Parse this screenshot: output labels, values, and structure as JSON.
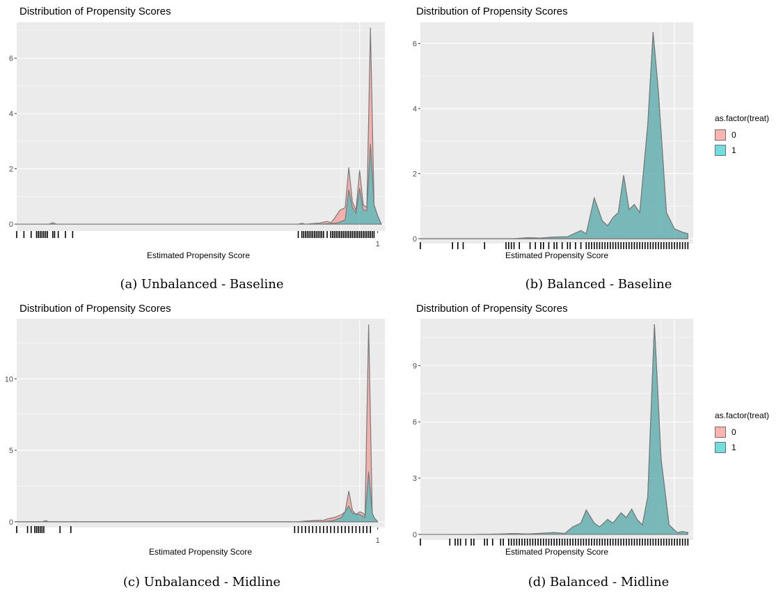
{
  "colors": {
    "group0": "#F8766D",
    "group1": "#00BFC4",
    "panel_bg": "#EBEBEB",
    "grid": "#FFFFFF",
    "outline": "#7A7A7A"
  },
  "legend": {
    "title": "as.factor(treat)",
    "items": [
      "0",
      "1"
    ]
  },
  "panels": [
    {
      "title": "Distribution of Propensity Scores",
      "xlabel": "Estimated Propensity Score",
      "caption": "(a) Unbalanced - Baseline",
      "xtick_labels": [
        "1"
      ],
      "yticks": [
        0,
        2,
        4,
        6
      ],
      "show_legend": false
    },
    {
      "title": "Distribution of Propensity Scores",
      "xlabel": "Estimated Propensity Score",
      "caption": "(b) Balanced - Baseline",
      "xtick_labels": [],
      "yticks": [
        0,
        2,
        4,
        6
      ],
      "show_legend": true
    },
    {
      "title": "Distribution of Propensity Scores",
      "xlabel": "Estimated Propensity Score",
      "caption": "(c) Unbalanced - Midline",
      "xtick_labels": [
        "1"
      ],
      "yticks": [
        0,
        5,
        10
      ],
      "show_legend": false
    },
    {
      "title": "Distribution of Propensity Scores",
      "xlabel": "Estimated Propensity Score",
      "caption": "(d) Balanced - Midline",
      "xtick_labels": [],
      "yticks": [
        0,
        3,
        6,
        9
      ],
      "show_legend": true
    }
  ],
  "chart_data": [
    {
      "type": "area",
      "title": "Distribution of Propensity Scores",
      "xlabel": "Estimated Propensity Score",
      "ylabel": "",
      "xlim": [
        0.0,
        1.02
      ],
      "ylim": [
        -0.25,
        7.3
      ],
      "xticks": [
        1
      ],
      "yticks": [
        0,
        2,
        4,
        6
      ],
      "series": [
        {
          "name": "0",
          "fill": "#F8766D",
          "points": [
            [
              0.0,
              0
            ],
            [
              0.09,
              0
            ],
            [
              0.1,
              0.05
            ],
            [
              0.11,
              0
            ],
            [
              0.78,
              0
            ],
            [
              0.79,
              0.03
            ],
            [
              0.8,
              0
            ],
            [
              0.84,
              0.04
            ],
            [
              0.86,
              0.1
            ],
            [
              0.87,
              0.05
            ],
            [
              0.88,
              0.2
            ],
            [
              0.895,
              0.5
            ],
            [
              0.91,
              0.6
            ],
            [
              0.92,
              2.05
            ],
            [
              0.93,
              0.8
            ],
            [
              0.94,
              0.5
            ],
            [
              0.95,
              1.95
            ],
            [
              0.96,
              0.7
            ],
            [
              0.97,
              0.6
            ],
            [
              0.98,
              7.1
            ],
            [
              0.99,
              0.7
            ],
            [
              1.0,
              0.3
            ],
            [
              1.01,
              0
            ]
          ]
        },
        {
          "name": "1",
          "fill": "#00BFC4",
          "points": [
            [
              0.0,
              0
            ],
            [
              0.84,
              0
            ],
            [
              0.87,
              0.02
            ],
            [
              0.89,
              0.05
            ],
            [
              0.91,
              0.15
            ],
            [
              0.92,
              1.25
            ],
            [
              0.93,
              0.6
            ],
            [
              0.94,
              0.4
            ],
            [
              0.95,
              1.3
            ],
            [
              0.96,
              0.5
            ],
            [
              0.97,
              0.5
            ],
            [
              0.98,
              2.9
            ],
            [
              0.99,
              0.7
            ],
            [
              1.0,
              0.3
            ],
            [
              1.01,
              0
            ]
          ]
        }
      ],
      "rug": [
        0.0,
        0.02,
        0.04,
        0.055,
        0.06,
        0.065,
        0.07,
        0.075,
        0.08,
        0.085,
        0.1,
        0.105,
        0.115,
        0.135,
        0.155,
        0.78,
        0.79,
        0.795,
        0.8,
        0.805,
        0.81,
        0.815,
        0.82,
        0.825,
        0.83,
        0.835,
        0.84,
        0.845,
        0.85,
        0.86,
        0.87,
        0.875,
        0.88,
        0.885,
        0.89,
        0.895,
        0.9,
        0.905,
        0.91,
        0.915,
        0.92,
        0.925,
        0.93,
        0.935,
        0.94,
        0.945,
        0.95,
        0.955,
        0.96,
        0.965,
        0.97,
        0.975,
        0.98,
        0.985,
        0.99
      ]
    },
    {
      "type": "area",
      "title": "Distribution of Propensity Scores",
      "xlabel": "Estimated Propensity Score",
      "ylabel": "",
      "xlim": [
        0.0,
        1.02
      ],
      "ylim": [
        -0.15,
        6.65
      ],
      "xticks": [],
      "yticks": [
        0,
        2,
        4,
        6
      ],
      "series": [
        {
          "name": "0",
          "fill": "#F8766D",
          "points": [
            [
              0.0,
              0
            ],
            [
              0.35,
              0
            ],
            [
              0.4,
              0.03
            ],
            [
              0.45,
              0.02
            ],
            [
              0.5,
              0.05
            ],
            [
              0.55,
              0.06
            ],
            [
              0.6,
              0.25
            ],
            [
              0.62,
              0.15
            ],
            [
              0.65,
              1.25
            ],
            [
              0.68,
              0.55
            ],
            [
              0.7,
              0.4
            ],
            [
              0.72,
              0.65
            ],
            [
              0.74,
              0.8
            ],
            [
              0.76,
              1.95
            ],
            [
              0.78,
              0.9
            ],
            [
              0.8,
              1.05
            ],
            [
              0.82,
              0.8
            ],
            [
              0.85,
              3.5
            ],
            [
              0.87,
              6.35
            ],
            [
              0.89,
              4.5
            ],
            [
              0.92,
              0.8
            ],
            [
              0.95,
              0.3
            ],
            [
              0.98,
              0.2
            ],
            [
              1.0,
              0.15
            ]
          ]
        },
        {
          "name": "1",
          "fill": "#00BFC4",
          "points": [
            [
              0.0,
              0
            ],
            [
              0.35,
              0
            ],
            [
              0.4,
              0.03
            ],
            [
              0.45,
              0.02
            ],
            [
              0.5,
              0.05
            ],
            [
              0.55,
              0.06
            ],
            [
              0.6,
              0.25
            ],
            [
              0.62,
              0.15
            ],
            [
              0.65,
              1.25
            ],
            [
              0.68,
              0.55
            ],
            [
              0.7,
              0.4
            ],
            [
              0.72,
              0.65
            ],
            [
              0.74,
              0.8
            ],
            [
              0.76,
              1.95
            ],
            [
              0.78,
              0.9
            ],
            [
              0.8,
              1.05
            ],
            [
              0.82,
              0.8
            ],
            [
              0.85,
              3.5
            ],
            [
              0.87,
              6.35
            ],
            [
              0.89,
              4.5
            ],
            [
              0.92,
              0.8
            ],
            [
              0.95,
              0.3
            ],
            [
              0.98,
              0.2
            ],
            [
              1.0,
              0.15
            ]
          ]
        }
      ],
      "rug": [
        0.0,
        0.12,
        0.14,
        0.16,
        0.24,
        0.32,
        0.33,
        0.34,
        0.35,
        0.37,
        0.41,
        0.43,
        0.45,
        0.46,
        0.48,
        0.5,
        0.51,
        0.53,
        0.55,
        0.56,
        0.58,
        0.6,
        0.62,
        0.63,
        0.64,
        0.65,
        0.66,
        0.67,
        0.68,
        0.69,
        0.7,
        0.71,
        0.72,
        0.73,
        0.74,
        0.75,
        0.76,
        0.77,
        0.78,
        0.79,
        0.8,
        0.81,
        0.82,
        0.83,
        0.84,
        0.85,
        0.86,
        0.87,
        0.88,
        0.89,
        0.9,
        0.91,
        0.92,
        0.93,
        0.94,
        0.95,
        0.96,
        0.97,
        0.98,
        0.99,
        1.0
      ]
    },
    {
      "type": "area",
      "title": "Distribution of Propensity Scores",
      "xlabel": "Estimated Propensity Score",
      "ylabel": "",
      "xlim": [
        0.0,
        1.02
      ],
      "ylim": [
        -0.4,
        14.2
      ],
      "xticks": [
        1
      ],
      "yticks": [
        0,
        5,
        10
      ],
      "series": [
        {
          "name": "0",
          "fill": "#F8766D",
          "points": [
            [
              0.0,
              0
            ],
            [
              0.07,
              0
            ],
            [
              0.08,
              0.08
            ],
            [
              0.09,
              0
            ],
            [
              0.78,
              0
            ],
            [
              0.8,
              0.05
            ],
            [
              0.83,
              0.1
            ],
            [
              0.85,
              0.1
            ],
            [
              0.86,
              0.2
            ],
            [
              0.88,
              0.3
            ],
            [
              0.9,
              0.5
            ],
            [
              0.91,
              0.7
            ],
            [
              0.92,
              2.15
            ],
            [
              0.93,
              0.8
            ],
            [
              0.94,
              0.5
            ],
            [
              0.95,
              0.7
            ],
            [
              0.96,
              0.6
            ],
            [
              0.965,
              0.4
            ],
            [
              0.975,
              13.8
            ],
            [
              0.985,
              0.6
            ],
            [
              0.99,
              0.3
            ],
            [
              1.0,
              0
            ]
          ]
        },
        {
          "name": "1",
          "fill": "#00BFC4",
          "points": [
            [
              0.0,
              0
            ],
            [
              0.85,
              0
            ],
            [
              0.88,
              0.1
            ],
            [
              0.9,
              0.3
            ],
            [
              0.92,
              1.1
            ],
            [
              0.93,
              0.6
            ],
            [
              0.95,
              0.5
            ],
            [
              0.965,
              0.3
            ],
            [
              0.975,
              3.5
            ],
            [
              0.985,
              0.6
            ],
            [
              0.99,
              0.3
            ],
            [
              1.0,
              0
            ]
          ]
        }
      ],
      "rug": [
        0.0,
        0.03,
        0.04,
        0.05,
        0.055,
        0.06,
        0.065,
        0.07,
        0.075,
        0.12,
        0.15,
        0.77,
        0.78,
        0.79,
        0.8,
        0.81,
        0.82,
        0.83,
        0.84,
        0.85,
        0.86,
        0.87,
        0.88,
        0.89,
        0.9,
        0.91,
        0.92,
        0.93,
        0.94,
        0.95,
        0.96,
        0.97,
        0.98
      ]
    },
    {
      "type": "area",
      "title": "Distribution of Propensity Scores",
      "xlabel": "Estimated Propensity Score",
      "ylabel": "",
      "xlim": [
        0.0,
        1.02
      ],
      "ylim": [
        -0.3,
        11.5
      ],
      "xticks": [],
      "yticks": [
        0,
        3,
        6,
        9
      ],
      "series": [
        {
          "name": "0",
          "fill": "#F8766D",
          "points": [
            [
              0.0,
              0
            ],
            [
              0.2,
              0
            ],
            [
              0.3,
              0.02
            ],
            [
              0.35,
              0.05
            ],
            [
              0.4,
              0.02
            ],
            [
              0.45,
              0.06
            ],
            [
              0.5,
              0.1
            ],
            [
              0.54,
              0.05
            ],
            [
              0.57,
              0.4
            ],
            [
              0.6,
              0.6
            ],
            [
              0.62,
              1.3
            ],
            [
              0.65,
              0.6
            ],
            [
              0.67,
              0.4
            ],
            [
              0.7,
              0.8
            ],
            [
              0.72,
              0.6
            ],
            [
              0.75,
              1.15
            ],
            [
              0.77,
              0.9
            ],
            [
              0.79,
              1.35
            ],
            [
              0.81,
              0.8
            ],
            [
              0.83,
              0.5
            ],
            [
              0.85,
              2
            ],
            [
              0.875,
              11.2
            ],
            [
              0.9,
              4
            ],
            [
              0.93,
              0.5
            ],
            [
              0.96,
              0.1
            ],
            [
              0.98,
              0.15
            ],
            [
              1.0,
              0.1
            ]
          ]
        },
        {
          "name": "1",
          "fill": "#00BFC4",
          "points": [
            [
              0.0,
              0
            ],
            [
              0.2,
              0
            ],
            [
              0.3,
              0.02
            ],
            [
              0.35,
              0.05
            ],
            [
              0.4,
              0.02
            ],
            [
              0.45,
              0.06
            ],
            [
              0.5,
              0.1
            ],
            [
              0.54,
              0.05
            ],
            [
              0.57,
              0.4
            ],
            [
              0.6,
              0.6
            ],
            [
              0.62,
              1.3
            ],
            [
              0.65,
              0.6
            ],
            [
              0.67,
              0.4
            ],
            [
              0.7,
              0.8
            ],
            [
              0.72,
              0.6
            ],
            [
              0.75,
              1.15
            ],
            [
              0.77,
              0.9
            ],
            [
              0.79,
              1.35
            ],
            [
              0.81,
              0.8
            ],
            [
              0.83,
              0.5
            ],
            [
              0.85,
              2
            ],
            [
              0.875,
              11.2
            ],
            [
              0.9,
              4
            ],
            [
              0.93,
              0.5
            ],
            [
              0.96,
              0.1
            ],
            [
              0.98,
              0.15
            ],
            [
              1.0,
              0.1
            ]
          ]
        }
      ],
      "rug": [
        0.0,
        0.11,
        0.13,
        0.14,
        0.15,
        0.17,
        0.19,
        0.2,
        0.24,
        0.25,
        0.27,
        0.3,
        0.31,
        0.33,
        0.34,
        0.35,
        0.36,
        0.37,
        0.38,
        0.39,
        0.4,
        0.41,
        0.42,
        0.43,
        0.44,
        0.45,
        0.46,
        0.47,
        0.48,
        0.49,
        0.5,
        0.51,
        0.52,
        0.53,
        0.54,
        0.55,
        0.56,
        0.57,
        0.58,
        0.59,
        0.6,
        0.61,
        0.62,
        0.63,
        0.64,
        0.65,
        0.66,
        0.67,
        0.68,
        0.69,
        0.7,
        0.71,
        0.72,
        0.73,
        0.74,
        0.75,
        0.76,
        0.77,
        0.78,
        0.79,
        0.8,
        0.81,
        0.82,
        0.83,
        0.84,
        0.85,
        0.86,
        0.87,
        0.88,
        0.89,
        0.9,
        0.91,
        0.92,
        0.93,
        0.94,
        0.95,
        0.96,
        0.97,
        0.98,
        0.99,
        1.0
      ]
    }
  ]
}
